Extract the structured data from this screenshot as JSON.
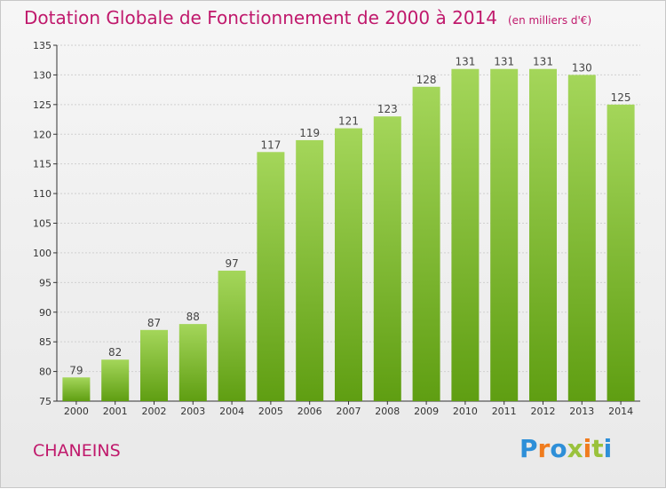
{
  "title": "Dotation Globale de Fonctionnement de 2000 à 2014",
  "subtitle": "(en milliers d'€)",
  "commune": "CHANEINS",
  "logo": {
    "text": "Proxiti",
    "letters": [
      {
        "ch": "P",
        "color": "#2e8fd8"
      },
      {
        "ch": "r",
        "color": "#f07c1e"
      },
      {
        "ch": "o",
        "color": "#2e8fd8"
      },
      {
        "ch": "x",
        "color": "#9ac23c"
      },
      {
        "ch": "i",
        "color": "#f07c1e"
      },
      {
        "ch": "t",
        "color": "#9ac23c"
      },
      {
        "ch": "i",
        "color": "#2e8fd8"
      }
    ]
  },
  "colors": {
    "title": "#c0196c",
    "bar_light": "#a4d65a",
    "bar_dark": "#5f9e12",
    "grid": "#d0d0d0",
    "axis": "#333333"
  },
  "chart_data": {
    "type": "bar",
    "title": "Dotation Globale de Fonctionnement de 2000 à 2014",
    "xlabel": "",
    "ylabel": "",
    "categories": [
      "2000",
      "2001",
      "2002",
      "2003",
      "2004",
      "2005",
      "2006",
      "2007",
      "2008",
      "2009",
      "2010",
      "2011",
      "2012",
      "2013",
      "2014"
    ],
    "values": [
      79,
      82,
      87,
      88,
      97,
      117,
      119,
      121,
      123,
      128,
      131,
      131,
      131,
      130,
      125
    ],
    "ylim": [
      75,
      135
    ],
    "yticks": [
      75,
      80,
      85,
      90,
      95,
      100,
      105,
      110,
      115,
      120,
      125,
      130,
      135
    ],
    "grid": true
  }
}
